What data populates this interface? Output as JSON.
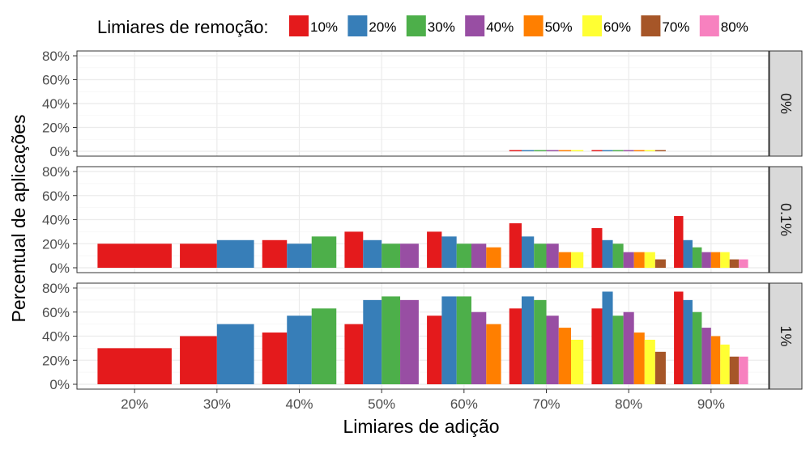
{
  "chart_data": {
    "type": "bar",
    "ylabel": "Percentual de aplicações",
    "xlabel": "Limiares de adição",
    "legend_title": "Limiares de remoção:",
    "legend_position": "top",
    "grid": true,
    "categories": [
      "20%",
      "30%",
      "40%",
      "50%",
      "60%",
      "70%",
      "80%",
      "90%"
    ],
    "ylim": [
      0,
      80
    ],
    "y_ticks": [
      "0%",
      "20%",
      "40%",
      "60%",
      "80%"
    ],
    "series_names": [
      "10%",
      "20%",
      "30%",
      "40%",
      "50%",
      "60%",
      "70%",
      "80%"
    ],
    "panels": [
      {
        "label": "0%",
        "values": [
          [
            0
          ],
          [
            0,
            0
          ],
          [
            0,
            0,
            0
          ],
          [
            0,
            0,
            0,
            0
          ],
          [
            0,
            0,
            0,
            0,
            0
          ],
          [
            1,
            1,
            1,
            1,
            1,
            1
          ],
          [
            1,
            1,
            1,
            1,
            1,
            1,
            1
          ],
          [
            0,
            0,
            0,
            0,
            0,
            0,
            0,
            0
          ]
        ]
      },
      {
        "label": "0.1%",
        "values": [
          [
            20
          ],
          [
            20,
            23
          ],
          [
            23,
            20,
            26
          ],
          [
            30,
            23,
            20,
            20
          ],
          [
            30,
            26,
            20,
            20,
            17
          ],
          [
            37,
            26,
            20,
            20,
            13,
            13
          ],
          [
            33,
            23,
            20,
            13,
            13,
            13,
            7
          ],
          [
            43,
            23,
            17,
            13,
            13,
            13,
            7,
            7
          ]
        ]
      },
      {
        "label": "1%",
        "values": [
          [
            30
          ],
          [
            40,
            50
          ],
          [
            43,
            57,
            63
          ],
          [
            50,
            70,
            73,
            70
          ],
          [
            57,
            73,
            73,
            60,
            50
          ],
          [
            63,
            73,
            70,
            57,
            47,
            37
          ],
          [
            63,
            77,
            57,
            60,
            43,
            37,
            27
          ],
          [
            77,
            70,
            60,
            47,
            40,
            33,
            23,
            23
          ]
        ]
      }
    ]
  },
  "colors": {
    "series": [
      "#e41a1c",
      "#377eb8",
      "#4daf4a",
      "#984ea3",
      "#ff7f00",
      "#ffff33",
      "#a65628",
      "#f781bf"
    ],
    "strip_fill": "#d9d9d9",
    "grid_major": "#ebebeb",
    "grid_minor": "#f5f5f5",
    "panel_border": "#333333",
    "tick_text": "#4d4d4d"
  }
}
